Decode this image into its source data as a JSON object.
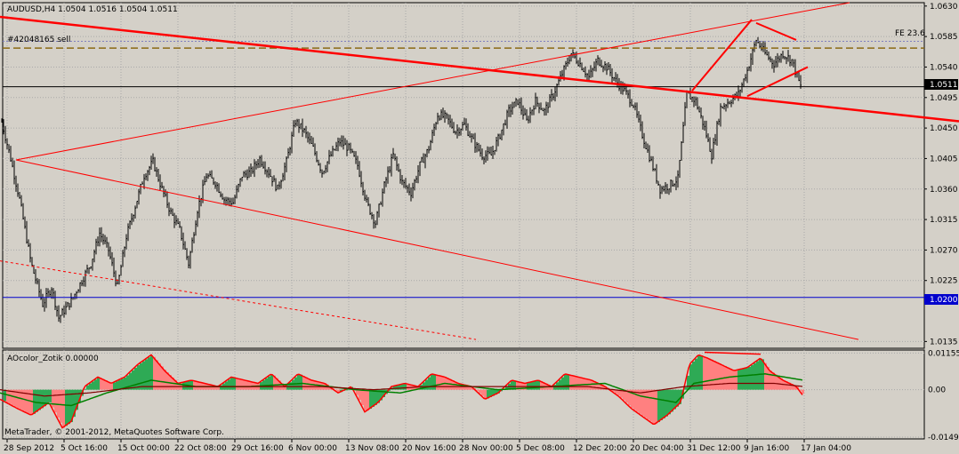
{
  "window": {
    "symbol_line": "AUDUSD,H4  1.0504 1.0516 1.0504 1.0511",
    "order_label": "#42048165 sell",
    "fe_label": "FE 23.6",
    "copyright": "MetaTrader, © 2001-2012, MetaQuotes Software Corp."
  },
  "colors": {
    "background": "#d4d0c8",
    "grid": "#a9a9a9",
    "bars": "#000000",
    "trendline": "#ff0000",
    "level_blue": "#0000cc",
    "order_line": "#8b6914",
    "fibo_line": "#8080c0",
    "ao_up": "#2eaa55",
    "ao_down": "#ff8080",
    "ao_line": "#ff0000",
    "ma_green": "#008000",
    "ma_maroon": "#800000"
  },
  "chart_data": [
    {
      "type": "ohlc",
      "title": "AUDUSD,H4",
      "quote": {
        "open": 1.0504,
        "high": 1.0516,
        "low": 1.0504,
        "close": 1.0511
      },
      "ylim": [
        1.0125,
        1.0635
      ],
      "y_ticks": [
        "1.0630",
        "1.0585",
        "1.0540",
        "1.0495",
        "1.0450",
        "1.0405",
        "1.0360",
        "1.0315",
        "1.0270",
        "1.0225",
        "1.0135"
      ],
      "x_ticks": [
        "28 Sep 2012",
        "5 Oct 16:00",
        "15 Oct 00:00",
        "22 Oct 08:00",
        "29 Oct 16:00",
        "6 Nov 00:00",
        "13 Nov 08:00",
        "20 Nov 16:00",
        "28 Nov 00:00",
        "5 Dec 08:00",
        "12 Dec 20:00",
        "20 Dec 04:00",
        "31 Dec 12:00",
        "9 Jan 16:00",
        "17 Jan 04:00"
      ],
      "grid": true,
      "close_path": [
        [
          0,
          1.047
        ],
        [
          12,
          1.0405
        ],
        [
          22,
          1.0345
        ],
        [
          35,
          1.025
        ],
        [
          48,
          1.019
        ],
        [
          58,
          1.0215
        ],
        [
          66,
          1.017
        ],
        [
          80,
          1.0195
        ],
        [
          92,
          1.0225
        ],
        [
          102,
          1.025
        ],
        [
          112,
          1.0295
        ],
        [
          122,
          1.027
        ],
        [
          132,
          1.0215
        ],
        [
          142,
          1.029
        ],
        [
          152,
          1.0335
        ],
        [
          162,
          1.038
        ],
        [
          172,
          1.04
        ],
        [
          182,
          1.036
        ],
        [
          192,
          1.0325
        ],
        [
          202,
          1.03
        ],
        [
          212,
          1.025
        ],
        [
          222,
          1.033
        ],
        [
          232,
          1.038
        ],
        [
          242,
          1.037
        ],
        [
          252,
          1.0345
        ],
        [
          262,
          1.034
        ],
        [
          272,
          1.038
        ],
        [
          282,
          1.0385
        ],
        [
          292,
          1.0405
        ],
        [
          302,
          1.0385
        ],
        [
          312,
          1.036
        ],
        [
          322,
          1.04
        ],
        [
          332,
          1.046
        ],
        [
          342,
          1.0445
        ],
        [
          352,
          1.042
        ],
        [
          362,
          1.0385
        ],
        [
          372,
          1.041
        ],
        [
          382,
          1.043
        ],
        [
          392,
          1.042
        ],
        [
          402,
          1.0395
        ],
        [
          412,
          1.034
        ],
        [
          422,
          1.031
        ],
        [
          432,
          1.0365
        ],
        [
          442,
          1.041
        ],
        [
          452,
          1.037
        ],
        [
          462,
          1.0355
        ],
        [
          472,
          1.0395
        ],
        [
          482,
          1.042
        ],
        [
          492,
          1.047
        ],
        [
          502,
          1.0465
        ],
        [
          512,
          1.0445
        ],
        [
          522,
          1.0455
        ],
        [
          532,
          1.043
        ],
        [
          542,
          1.041
        ],
        [
          552,
          1.041
        ],
        [
          562,
          1.044
        ],
        [
          572,
          1.0475
        ],
        [
          582,
          1.049
        ],
        [
          592,
          1.046
        ],
        [
          602,
          1.049
        ],
        [
          612,
          1.0475
        ],
        [
          622,
          1.05
        ],
        [
          632,
          1.053
        ],
        [
          642,
          1.056
        ],
        [
          652,
          1.0545
        ],
        [
          662,
          1.0525
        ],
        [
          672,
          1.055
        ],
        [
          682,
          1.054
        ],
        [
          692,
          1.052
        ],
        [
          702,
          1.0505
        ],
        [
          712,
          1.0485
        ],
        [
          722,
          1.044
        ],
        [
          732,
          1.04
        ],
        [
          742,
          1.036
        ],
        [
          752,
          1.0365
        ],
        [
          762,
          1.0375
        ],
        [
          772,
          1.05
        ],
        [
          782,
          1.049
        ],
        [
          792,
          1.045
        ],
        [
          800,
          1.041
        ],
        [
          810,
          1.048
        ],
        [
          820,
          1.049
        ],
        [
          830,
          1.05
        ],
        [
          840,
          1.0535
        ],
        [
          850,
          1.058
        ],
        [
          860,
          1.056
        ],
        [
          870,
          1.0545
        ],
        [
          880,
          1.056
        ],
        [
          890,
          1.055
        ],
        [
          900,
          1.0511
        ]
      ],
      "levels": {
        "blue": 1.02,
        "current": 1.0511,
        "order": 1.0568,
        "fibo": 1.0578
      },
      "price_labels": {
        "current": "1.0511",
        "blue": "1.0200"
      },
      "trendlines": [
        {
          "from": [
            0,
            1.0614
          ],
          "to": [
            1078,
            1.046
          ]
        },
        {
          "from": [
            18,
            1.0403
          ],
          "to": [
            955,
            1.0635
          ]
        },
        {
          "from": [
            18,
            1.0403
          ],
          "to": [
            965,
            1.0138
          ]
        },
        {
          "from": [
            0,
            1.0254
          ],
          "to": [
            535,
            1.0138
          ],
          "dashed": true
        },
        {
          "from": [
            778,
            1.0505
          ],
          "to": [
            845,
            1.061
          ],
          "bold": true
        },
        {
          "from": [
            850,
            1.0605
          ],
          "to": [
            895,
            1.058
          ],
          "bold": true
        },
        {
          "from": [
            840,
            1.0497
          ],
          "to": [
            908,
            1.054
          ],
          "bold": true
        }
      ]
    },
    {
      "type": "histogram",
      "title": "AOcolor_Zotik 0.00000",
      "ylim": [
        -0.0155,
        0.0125
      ],
      "y_ticks": [
        "0.01155",
        "0.00",
        "-0.01495"
      ],
      "ao": [
        [
          0,
          -0.003
        ],
        [
          20,
          -0.006
        ],
        [
          35,
          -0.008
        ],
        [
          55,
          -0.004
        ],
        [
          70,
          -0.012
        ],
        [
          80,
          -0.01
        ],
        [
          95,
          0.001
        ],
        [
          110,
          0.004
        ],
        [
          125,
          0.002
        ],
        [
          140,
          0.004
        ],
        [
          155,
          0.008
        ],
        [
          170,
          0.011
        ],
        [
          185,
          0.006
        ],
        [
          200,
          0.002
        ],
        [
          215,
          0.003
        ],
        [
          230,
          0.002
        ],
        [
          245,
          0.001
        ],
        [
          260,
          0.004
        ],
        [
          275,
          0.003
        ],
        [
          290,
          0.002
        ],
        [
          305,
          0.005
        ],
        [
          320,
          0.001
        ],
        [
          335,
          0.005
        ],
        [
          350,
          0.003
        ],
        [
          365,
          0.002
        ],
        [
          380,
          -0.001
        ],
        [
          395,
          0.001
        ],
        [
          410,
          -0.007
        ],
        [
          425,
          -0.004
        ],
        [
          440,
          0.001
        ],
        [
          455,
          0.002
        ],
        [
          470,
          0.001
        ],
        [
          485,
          0.005
        ],
        [
          500,
          0.004
        ],
        [
          515,
          0.002
        ],
        [
          530,
          0.001
        ],
        [
          545,
          -0.003
        ],
        [
          560,
          -0.001
        ],
        [
          575,
          0.003
        ],
        [
          590,
          0.002
        ],
        [
          605,
          0.003
        ],
        [
          620,
          0.001
        ],
        [
          635,
          0.005
        ],
        [
          650,
          0.004
        ],
        [
          665,
          0.003
        ],
        [
          680,
          0.001
        ],
        [
          695,
          -0.002
        ],
        [
          710,
          -0.006
        ],
        [
          725,
          -0.009
        ],
        [
          735,
          -0.011
        ],
        [
          750,
          -0.008
        ],
        [
          765,
          -0.004
        ],
        [
          775,
          0.008
        ],
        [
          785,
          0.011
        ],
        [
          795,
          0.01
        ],
        [
          810,
          0.008
        ],
        [
          825,
          0.006
        ],
        [
          840,
          0.007
        ],
        [
          855,
          0.01
        ],
        [
          865,
          0.006
        ],
        [
          880,
          0.003
        ],
        [
          895,
          0.001
        ],
        [
          903,
          -0.002
        ]
      ],
      "ma_green": [
        [
          0,
          -0.001
        ],
        [
          40,
          -0.004
        ],
        [
          80,
          -0.005
        ],
        [
          120,
          -0.001
        ],
        [
          170,
          0.003
        ],
        [
          220,
          0.001
        ],
        [
          280,
          0.001
        ],
        [
          340,
          0.002
        ],
        [
          400,
          0.0
        ],
        [
          450,
          -0.001
        ],
        [
          500,
          0.002
        ],
        [
          560,
          0.0
        ],
        [
          620,
          0.001
        ],
        [
          680,
          0.002
        ],
        [
          720,
          -0.002
        ],
        [
          760,
          -0.004
        ],
        [
          780,
          0.002
        ],
        [
          820,
          0.004
        ],
        [
          860,
          0.005
        ],
        [
          903,
          0.003
        ]
      ],
      "ma_maroon": [
        [
          0,
          0.0
        ],
        [
          50,
          -0.002
        ],
        [
          100,
          -0.001
        ],
        [
          160,
          0.001
        ],
        [
          220,
          0.001
        ],
        [
          300,
          0.001
        ],
        [
          360,
          0.001
        ],
        [
          420,
          0.0
        ],
        [
          480,
          0.001
        ],
        [
          540,
          0.001
        ],
        [
          600,
          0.001
        ],
        [
          660,
          0.001
        ],
        [
          720,
          -0.001
        ],
        [
          770,
          0.001
        ],
        [
          820,
          0.002
        ],
        [
          870,
          0.002
        ],
        [
          903,
          0.001
        ]
      ],
      "divergence_line": {
        "from": [
          792,
          0.0118
        ],
        "to": [
          855,
          0.0112
        ]
      }
    }
  ]
}
